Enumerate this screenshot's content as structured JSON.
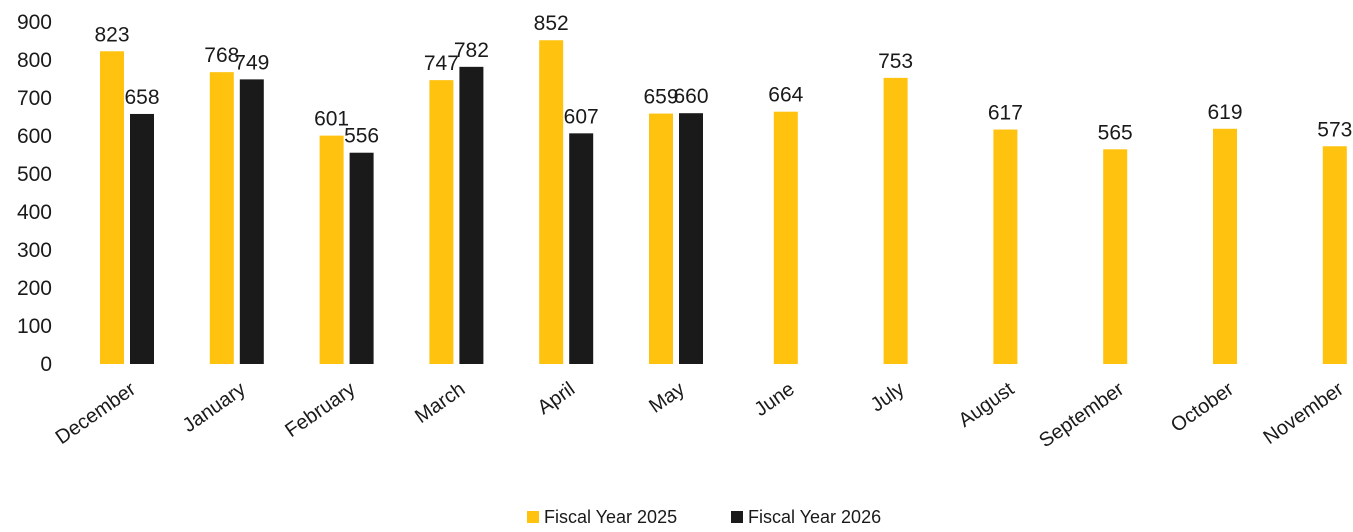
{
  "chart_data": {
    "type": "bar",
    "categories": [
      "December",
      "January",
      "February",
      "March",
      "April",
      "May",
      "June",
      "July",
      "August",
      "September",
      "October",
      "November"
    ],
    "series": [
      {
        "name": "Fiscal Year 2025",
        "color": "#FFC20E",
        "values": [
          823,
          768,
          601,
          747,
          852,
          659,
          664,
          753,
          617,
          565,
          619,
          573
        ]
      },
      {
        "name": "Fiscal Year 2026",
        "color": "#1A1A1A",
        "values": [
          658,
          749,
          556,
          782,
          607,
          660,
          null,
          null,
          null,
          null,
          null,
          null
        ]
      }
    ],
    "yticks": [
      "900",
      "800",
      "700",
      "600",
      "500",
      "400",
      "300",
      "200",
      "100",
      "0"
    ],
    "ylim": [
      0,
      900
    ],
    "grid": false,
    "legend_position": "bottom-center"
  }
}
